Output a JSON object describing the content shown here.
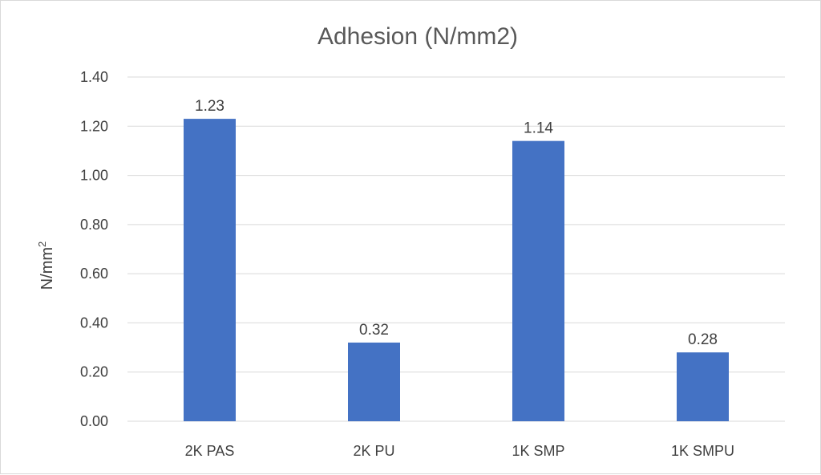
{
  "chart_data": {
    "type": "bar",
    "title": "Adhesion (N/mm2)",
    "xlabel": "",
    "ylabel": "N/mm",
    "ylabel_superscript": "2",
    "categories": [
      "2K PAS",
      "2K PU",
      "1K SMP",
      "1K SMPU"
    ],
    "values": [
      1.23,
      0.32,
      1.14,
      0.28
    ],
    "data_labels": [
      "1.23",
      "0.32",
      "1.14",
      "0.28"
    ],
    "ylim": [
      0,
      1.4
    ],
    "y_ticks": [
      "0.00",
      "0.20",
      "0.40",
      "0.60",
      "0.80",
      "1.00",
      "1.20",
      "1.40"
    ],
    "y_tick_values": [
      0,
      0.2,
      0.4,
      0.6,
      0.8,
      1.0,
      1.2,
      1.4
    ],
    "bar_color": "#4472C4",
    "grid": true,
    "legend": "none"
  }
}
